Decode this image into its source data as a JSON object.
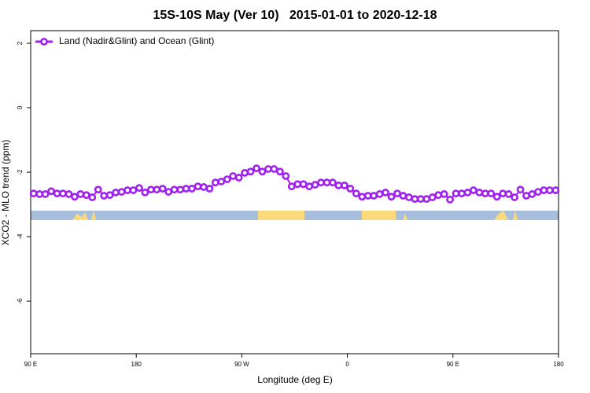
{
  "chart_data": {
    "type": "line",
    "title": "15S-10S May (Ver 10)   2015-01-01 to 2020-12-18",
    "x_label": "Longitude (deg E)",
    "y_label": "XCO2 - MLO trend (ppm)",
    "x": [
      92.5,
      97.5,
      102.5,
      107.5,
      112.5,
      117.5,
      122.5,
      127.5,
      132.5,
      137.5,
      142.5,
      147.5,
      152.5,
      157.5,
      162.5,
      167.5,
      172.5,
      177.5,
      182.5,
      187.5,
      192.5,
      197.5,
      202.5,
      207.5,
      212.5,
      217.5,
      222.5,
      227.5,
      232.5,
      237.5,
      242.5,
      247.5,
      252.5,
      257.5,
      262.5,
      267.5,
      272.5,
      277.5,
      282.5,
      287.5,
      292.5,
      297.5,
      302.5,
      307.5,
      312.5,
      317.5,
      322.5,
      327.5,
      332.5,
      337.5,
      342.5,
      347.5,
      352.5,
      357.5,
      362.5,
      367.5,
      372.5,
      377.5,
      382.5,
      387.5,
      392.5,
      397.5,
      402.5,
      407.5,
      412.5,
      417.5,
      422.5,
      427.5,
      432.5,
      437.5,
      442.5,
      447.5,
      452.5,
      457.5,
      462.5,
      467.5,
      472.5,
      477.5,
      482.5,
      487.5,
      492.5,
      497.5,
      502.5,
      507.5,
      512.5,
      517.5,
      522.5,
      527.5,
      532.5,
      537.5
    ],
    "series": [
      {
        "name": "Land (Nadir&Glint) and Ocean (Glint)",
        "color": "#a020f0",
        "values": [
          -2.66,
          -2.68,
          -2.68,
          -2.59,
          -2.66,
          -2.66,
          -2.68,
          -2.76,
          -2.68,
          -2.71,
          -2.78,
          -2.54,
          -2.73,
          -2.71,
          -2.63,
          -2.61,
          -2.56,
          -2.56,
          -2.49,
          -2.63,
          -2.54,
          -2.54,
          -2.51,
          -2.61,
          -2.54,
          -2.54,
          -2.51,
          -2.51,
          -2.44,
          -2.46,
          -2.51,
          -2.32,
          -2.29,
          -2.22,
          -2.12,
          -2.17,
          -2.02,
          -1.98,
          -1.88,
          -1.98,
          -1.9,
          -1.9,
          -1.98,
          -2.12,
          -2.44,
          -2.37,
          -2.37,
          -2.44,
          -2.39,
          -2.32,
          -2.32,
          -2.32,
          -2.41,
          -2.41,
          -2.51,
          -2.66,
          -2.76,
          -2.73,
          -2.73,
          -2.68,
          -2.63,
          -2.76,
          -2.66,
          -2.73,
          -2.78,
          -2.83,
          -2.83,
          -2.83,
          -2.78,
          -2.71,
          -2.68,
          -2.85,
          -2.66,
          -2.66,
          -2.63,
          -2.56,
          -2.63,
          -2.66,
          -2.66,
          -2.76,
          -2.66,
          -2.68,
          -2.78,
          -2.54,
          -2.73,
          -2.68,
          -2.61,
          -2.56,
          -2.56,
          -2.56
        ]
      }
    ],
    "xlim": [
      90,
      540
    ],
    "xticks": [
      {
        "value": 90,
        "label": "90 E"
      },
      180,
      {
        "value": 270,
        "label": "90 W"
      },
      {
        "value": 360,
        "label": "0"
      },
      {
        "value": 450,
        "label": "90 E"
      },
      {
        "value": 540,
        "label": "180"
      }
    ],
    "ylim": [
      -7.63,
      2.39
    ],
    "yticks": [
      2,
      0,
      -2,
      -4,
      -6
    ],
    "legend_position": "top-left"
  }
}
